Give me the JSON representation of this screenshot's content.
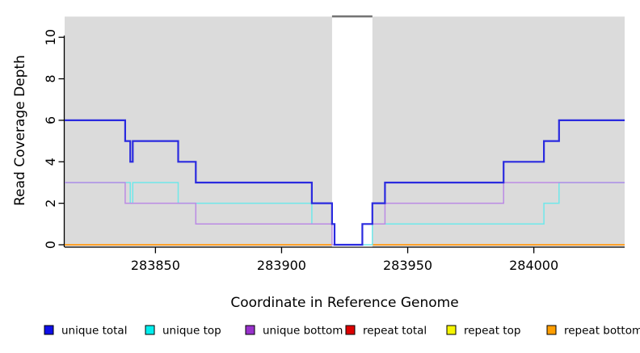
{
  "chart_data": {
    "type": "line",
    "subtype": "step",
    "title": "",
    "xlabel": "Coordinate in Reference Genome",
    "ylabel": "Read Coverage Depth",
    "xlim": [
      283814,
      284036
    ],
    "ylim": [
      0,
      11
    ],
    "x_ticks": [
      283850,
      283900,
      283950,
      284000
    ],
    "y_ticks": [
      0,
      2,
      4,
      6,
      8,
      10
    ],
    "grid": false,
    "legend_position": "bottom",
    "page_bg": "#FFFFFF",
    "plot_bg": "#DBDBDB",
    "axis_color": "#000000",
    "masked_region": {
      "x0": 283920,
      "x1": 283936,
      "fill": "#FFFFFF",
      "top_border": "#6E6E6E"
    },
    "series": [
      {
        "name": "unique total",
        "line_color": "#2A2ADF",
        "legend_fill": "#0F0FE8",
        "line_width": 2.2,
        "layer": "above-mask",
        "draw_order": 6,
        "steps": [
          [
            283814,
            6
          ],
          [
            283838,
            5
          ],
          [
            283840,
            4
          ],
          [
            283841,
            5
          ],
          [
            283859,
            4
          ],
          [
            283866,
            3
          ],
          [
            283912,
            2
          ],
          [
            283920,
            1
          ],
          [
            283921,
            0
          ],
          [
            283932,
            1
          ],
          [
            283936,
            2
          ],
          [
            283941,
            3
          ],
          [
            283988,
            4
          ],
          [
            284004,
            5
          ],
          [
            284010,
            6
          ]
        ]
      },
      {
        "name": "unique top",
        "line_color": "#6FE8EA",
        "legend_fill": "#00EEEE",
        "line_width": 1.5,
        "layer": "above-mask",
        "draw_order": 4,
        "steps": [
          [
            283814,
            3
          ],
          [
            283840,
            2
          ],
          [
            283841,
            3
          ],
          [
            283859,
            2
          ],
          [
            283912,
            1
          ],
          [
            283921,
            0
          ],
          [
            283936,
            1
          ],
          [
            284004,
            2
          ],
          [
            284010,
            3
          ]
        ]
      },
      {
        "name": "unique bottom",
        "line_color": "#BB8BE4",
        "legend_fill": "#9932CC",
        "line_width": 1.5,
        "layer": "above-mask",
        "draw_order": 5,
        "steps": [
          [
            283814,
            3
          ],
          [
            283838,
            2
          ],
          [
            283866,
            1
          ],
          [
            283920,
            0
          ],
          [
            283932,
            1
          ],
          [
            283941,
            2
          ],
          [
            283988,
            3
          ]
        ]
      },
      {
        "name": "repeat total",
        "line_color": "#CC2222",
        "legend_fill": "#DD0000",
        "line_width": 1.5,
        "layer": "below-mask",
        "draw_order": 1,
        "steps": [
          [
            283814,
            0
          ]
        ]
      },
      {
        "name": "repeat top",
        "line_color": "#EEEE00",
        "legend_fill": "#F5F500",
        "line_width": 1.5,
        "layer": "below-mask",
        "draw_order": 2,
        "steps": [
          [
            283814,
            0
          ]
        ]
      },
      {
        "name": "repeat bottom",
        "line_color": "#FFA22B",
        "legend_fill": "#FF9E00",
        "line_width": 2,
        "layer": "below-mask",
        "draw_order": 3,
        "steps": [
          [
            283814,
            0
          ]
        ]
      }
    ]
  }
}
